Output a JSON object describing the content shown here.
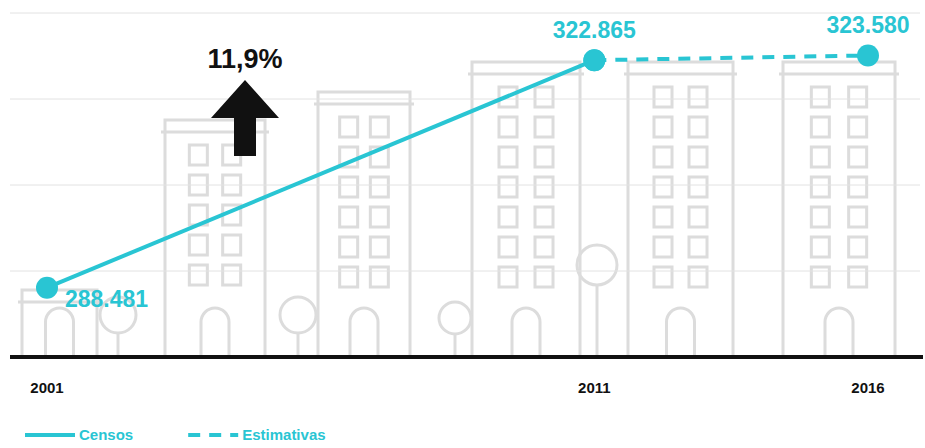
{
  "chart_data": {
    "type": "line",
    "x": [
      2001,
      2011,
      2016
    ],
    "xlim": [
      2001,
      2016
    ],
    "xticks": [
      2001,
      2011,
      2016
    ],
    "ylim": [
      278000,
      330000
    ],
    "yticks": [
      278000,
      291000,
      304000,
      317000,
      330000
    ],
    "grid": true,
    "tick_labels": "x",
    "data_labels": true,
    "legend": "bottom-left",
    "annotations": [
      "11,9%"
    ],
    "series": [
      {
        "name": "Censos",
        "color": "#29c5d3",
        "line_style": "solid",
        "marker": "circle",
        "values": [
          288481,
          322865,
          null
        ],
        "value_labels": [
          "288.481",
          "322.865",
          null
        ]
      },
      {
        "name": "Estimativas",
        "color": "#29c5d3",
        "line_style": "dashed",
        "marker": "circle",
        "values": [
          null,
          322865,
          323580
        ],
        "value_labels": [
          null,
          null,
          "323.580"
        ]
      }
    ]
  }
}
